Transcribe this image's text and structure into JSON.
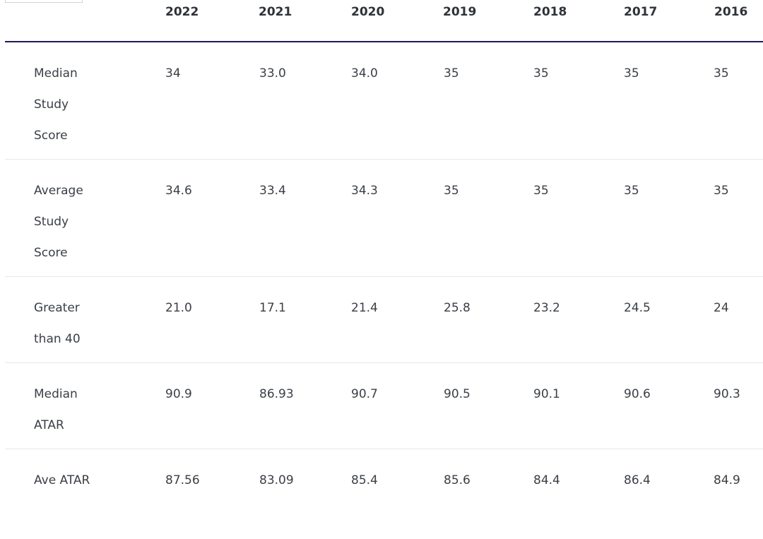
{
  "table": {
    "years": [
      "2022",
      "2021",
      "2020",
      "2019",
      "2018",
      "2017",
      "2016"
    ],
    "rows": [
      {
        "label": "Median Study Score",
        "values": [
          "34",
          "33.0",
          "34.0",
          "35",
          "35",
          "35",
          "35"
        ]
      },
      {
        "label": "Average Study Score",
        "values": [
          "34.6",
          "33.4",
          "34.3",
          "35",
          "35",
          "35",
          "35"
        ]
      },
      {
        "label": "Greater than 40",
        "values": [
          "21.0",
          "17.1",
          "21.4",
          "25.8",
          "23.2",
          "24.5",
          "24"
        ]
      },
      {
        "label": "Median ATAR",
        "values": [
          "90.9",
          "86.93",
          "90.7",
          "90.5",
          "90.1",
          "90.6",
          "90.3"
        ]
      },
      {
        "label": "Ave ATAR",
        "values": [
          "87.56",
          "83.09",
          "85.4",
          "85.6",
          "84.4",
          "86.4",
          "84.9"
        ]
      }
    ]
  },
  "colors": {
    "header_rule": "#1d1a57",
    "row_divider": "#e6e8eb",
    "text": "#3a3f46"
  }
}
